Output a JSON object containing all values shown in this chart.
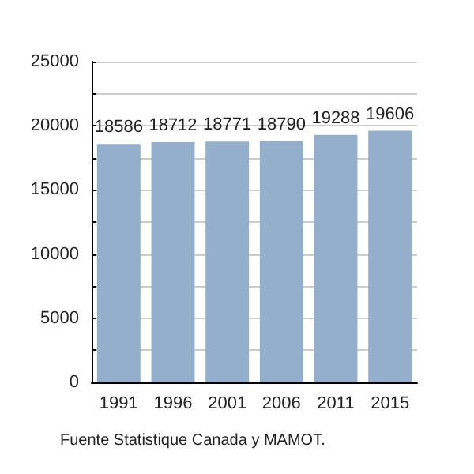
{
  "chart_data": {
    "type": "bar",
    "categories": [
      "1991",
      "1996",
      "2001",
      "2006",
      "2011",
      "2015"
    ],
    "values": [
      18586,
      18712,
      18771,
      18790,
      19288,
      19606
    ],
    "color": "#94afcb",
    "data_labels": true,
    "ylim": [
      0,
      25000
    ],
    "yticks": [
      0,
      {
        "value": 2500,
        "label": null
      },
      5000,
      {
        "value": 7500,
        "label": null
      },
      10000,
      {
        "value": 12500,
        "label": null
      },
      15000,
      {
        "value": 17500,
        "label": null
      },
      20000,
      {
        "value": 22500,
        "label": null
      },
      25000
    ],
    "grid": true,
    "annotations": [
      "Fuente Statistique Canada y MAMOT."
    ]
  }
}
